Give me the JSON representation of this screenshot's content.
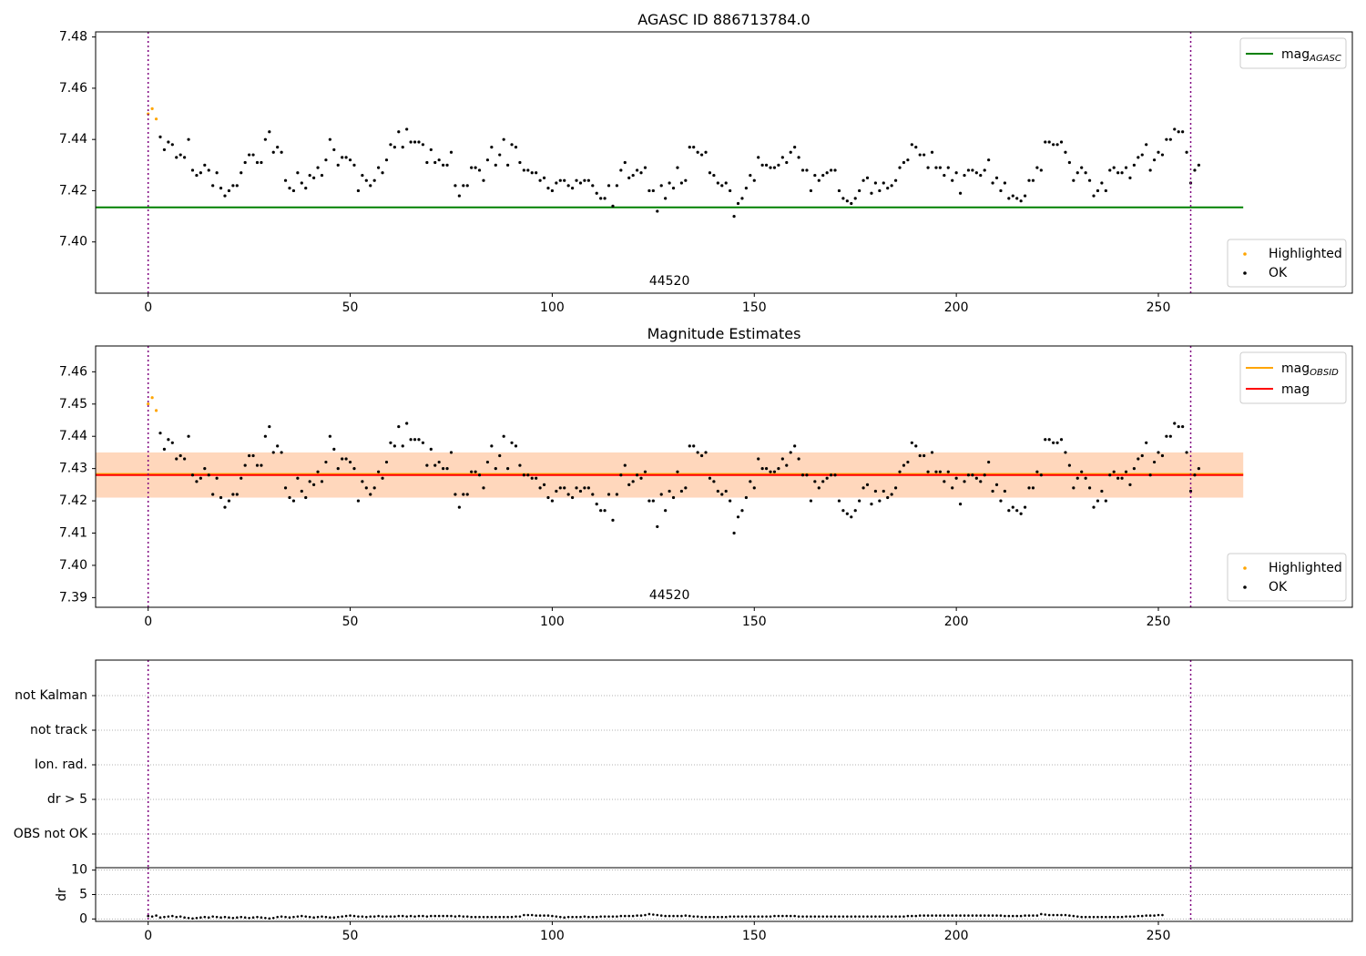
{
  "chart_data": [
    {
      "type": "scatter",
      "title": "AGASC ID 886713784.0",
      "xlabel": "",
      "ylabel": "",
      "annotation": "44520",
      "xlim": [
        -13,
        298
      ],
      "ylim": [
        7.38,
        7.482
      ],
      "x_ticks": [
        0,
        50,
        100,
        150,
        200,
        250
      ],
      "y_ticks": [
        7.4,
        7.42,
        7.44,
        7.46,
        7.48
      ],
      "y_tick_decimals": 2,
      "vlines": [
        0,
        258
      ],
      "hlines": [
        {
          "name": "mag_AGASC",
          "y": 7.4135,
          "x0": -13,
          "x1": 271,
          "color": "#008000"
        }
      ],
      "band": null,
      "legend_lines": [
        {
          "name": "mag",
          "sub": "AGASC",
          "color": "#008000"
        }
      ],
      "legend_points": [
        {
          "name": "Highlighted",
          "color": "#ffa500"
        },
        {
          "name": "OK",
          "color": "#000000"
        }
      ],
      "legend_position": "top-right / bottom-right",
      "grid": false
    },
    {
      "type": "scatter",
      "title": "Magnitude Estimates",
      "xlabel": "",
      "ylabel": "",
      "annotation": "44520",
      "xlim": [
        -13,
        298
      ],
      "ylim": [
        7.387,
        7.468
      ],
      "x_ticks": [
        0,
        50,
        100,
        150,
        200,
        250
      ],
      "y_ticks": [
        7.39,
        7.4,
        7.41,
        7.42,
        7.43,
        7.44,
        7.45,
        7.46
      ],
      "y_tick_decimals": 2,
      "vlines": [
        0,
        258
      ],
      "hlines": [
        {
          "name": "mag_OBSID",
          "y": 7.4283,
          "x0": -13,
          "x1": 271,
          "color": "#ffa500"
        },
        {
          "name": "mag",
          "y": 7.428,
          "x0": -13,
          "x1": 271,
          "color": "#ff0000"
        }
      ],
      "band": {
        "y0": 7.421,
        "y1": 7.435,
        "x0": -13,
        "x1": 271,
        "color": "#ffb6c1"
      },
      "band_inner": {
        "y0": 7.421,
        "y1": 7.435,
        "x0": -13,
        "x1": 271,
        "color": "#ffa500"
      },
      "legend_lines": [
        {
          "name": "mag",
          "sub": "OBSID",
          "color": "#ffa500"
        },
        {
          "name": "mag",
          "sub": "",
          "color": "#ff0000"
        }
      ],
      "legend_points": [
        {
          "name": "Highlighted",
          "color": "#ffa500"
        },
        {
          "name": "OK",
          "color": "#000000"
        }
      ],
      "legend_position": "top-right / bottom-right",
      "grid": false
    },
    {
      "type": "scatter",
      "title": "",
      "xlabel": "",
      "ylabel": "",
      "categories": [
        "not Kalman",
        "not track",
        "Ion. rad.",
        "dr > 5",
        "OBS not OK"
      ],
      "xlim": [
        -13,
        298
      ],
      "vlines": [
        0,
        258
      ],
      "flagged_points": [],
      "grid": true
    },
    {
      "type": "scatter",
      "title": "",
      "xlabel": "",
      "ylabel": "dr",
      "xlim": [
        -13,
        298
      ],
      "ylim": [
        -0.5,
        10.5
      ],
      "x_ticks": [
        0,
        50,
        100,
        150,
        200,
        250
      ],
      "y_ticks": [
        0,
        5,
        10
      ],
      "vlines": [
        0,
        258
      ],
      "grid": true,
      "dr_values": [
        0.6,
        0.5,
        0.7,
        0.3,
        0.4,
        0.5,
        0.6,
        0.4,
        0.5,
        0.3,
        0.2,
        0.1,
        0.2,
        0.3,
        0.4,
        0.3,
        0.5,
        0.4,
        0.3,
        0.4,
        0.3,
        0.2,
        0.3,
        0.4,
        0.3,
        0.2,
        0.3,
        0.4,
        0.3,
        0.2,
        0.1,
        0.2,
        0.4,
        0.5,
        0.4,
        0.3,
        0.4,
        0.5,
        0.6,
        0.5,
        0.4,
        0.3,
        0.4,
        0.5,
        0.4,
        0.3,
        0.3,
        0.4,
        0.5,
        0.6,
        0.7,
        0.6,
        0.5,
        0.5,
        0.4,
        0.5,
        0.5,
        0.6,
        0.5,
        0.5,
        0.5,
        0.5,
        0.6,
        0.6,
        0.5,
        0.6,
        0.5,
        0.6,
        0.6,
        0.5,
        0.6,
        0.6,
        0.6,
        0.6,
        0.6,
        0.6,
        0.5,
        0.6,
        0.5,
        0.5,
        0.4,
        0.4,
        0.4,
        0.4,
        0.4,
        0.4,
        0.4,
        0.4,
        0.4,
        0.4,
        0.4,
        0.5,
        0.5,
        0.8,
        0.8,
        0.8,
        0.7,
        0.7,
        0.7,
        0.7,
        0.6,
        0.5,
        0.4,
        0.3,
        0.4,
        0.4,
        0.4,
        0.4,
        0.5,
        0.4,
        0.4,
        0.4,
        0.5,
        0.5,
        0.5,
        0.5,
        0.5,
        0.6,
        0.6,
        0.6,
        0.6,
        0.7,
        0.7,
        0.8,
        1.0,
        0.9,
        0.8,
        0.7,
        0.6,
        0.6,
        0.6,
        0.6,
        0.6,
        0.7,
        0.6,
        0.5,
        0.5,
        0.4,
        0.4,
        0.4,
        0.4,
        0.4,
        0.4,
        0.4,
        0.5,
        0.5,
        0.5,
        0.5,
        0.5,
        0.5,
        0.5,
        0.5,
        0.5,
        0.5,
        0.5,
        0.6,
        0.6,
        0.6,
        0.6,
        0.6,
        0.6,
        0.5,
        0.5,
        0.5,
        0.5,
        0.5,
        0.5,
        0.5,
        0.5,
        0.5,
        0.5,
        0.5,
        0.5,
        0.5,
        0.5,
        0.5,
        0.5,
        0.5,
        0.5,
        0.5,
        0.5,
        0.5,
        0.5,
        0.5,
        0.5,
        0.5,
        0.5,
        0.5,
        0.6,
        0.6,
        0.6,
        0.7,
        0.7,
        0.7,
        0.7,
        0.7,
        0.7,
        0.7,
        0.7,
        0.7,
        0.7,
        0.7,
        0.7,
        0.7,
        0.7,
        0.7,
        0.7,
        0.7,
        0.7,
        0.7,
        0.7,
        0.7,
        0.6,
        0.6,
        0.6,
        0.6,
        0.6,
        0.7,
        0.7,
        0.7,
        0.7,
        1.0,
        0.9,
        0.8,
        0.8,
        0.8,
        0.8,
        0.8,
        0.7,
        0.6,
        0.5,
        0.4,
        0.4,
        0.4,
        0.4,
        0.4,
        0.4,
        0.4,
        0.4,
        0.4,
        0.4,
        0.4,
        0.5,
        0.5,
        0.5,
        0.6,
        0.6,
        0.7,
        0.7,
        0.7,
        0.8,
        0.8
      ]
    }
  ],
  "series": {
    "highlighted": {
      "x": [
        0,
        1,
        2
      ],
      "y": [
        7.45,
        7.452,
        7.448
      ]
    },
    "ok": {
      "x0": 3,
      "y": [
        7.441,
        7.436,
        7.439,
        7.438,
        7.433,
        7.434,
        7.433,
        7.44,
        7.428,
        7.426,
        7.427,
        7.43,
        7.428,
        7.422,
        7.427,
        7.421,
        7.418,
        7.42,
        7.422,
        7.422,
        7.427,
        7.431,
        7.434,
        7.434,
        7.431,
        7.431,
        7.44,
        7.443,
        7.435,
        7.437,
        7.435,
        7.424,
        7.421,
        7.42,
        7.427,
        7.423,
        7.421,
        7.426,
        7.425,
        7.429,
        7.426,
        7.432,
        7.44,
        7.436,
        7.43,
        7.433,
        7.433,
        7.432,
        7.43,
        7.42,
        7.426,
        7.424,
        7.422,
        7.424,
        7.429,
        7.427,
        7.432,
        7.438,
        7.437,
        7.443,
        7.437,
        7.444,
        7.439,
        7.439,
        7.439,
        7.438,
        7.431,
        7.436,
        7.431,
        7.432,
        7.43,
        7.43,
        7.435,
        7.422,
        7.418,
        7.422,
        7.422,
        7.429,
        7.429,
        7.428,
        7.424,
        7.432,
        7.437,
        7.43,
        7.434,
        7.44,
        7.43,
        7.438,
        7.437,
        7.431,
        7.428,
        7.428,
        7.427,
        7.427,
        7.424,
        7.425,
        7.421,
        7.42,
        7.423,
        7.424,
        7.424,
        7.422,
        7.421,
        7.424,
        7.423,
        7.424,
        7.424,
        7.422,
        7.419,
        7.417,
        7.417,
        7.422,
        7.414,
        7.422,
        7.428,
        7.431,
        7.425,
        7.426,
        7.428,
        7.427,
        7.429,
        7.42,
        7.42,
        7.412,
        7.422,
        7.417,
        7.423,
        7.421,
        7.429,
        7.423,
        7.424,
        7.437,
        7.437,
        7.435,
        7.434,
        7.435,
        7.427,
        7.426,
        7.423,
        7.422,
        7.423,
        7.42,
        7.41,
        7.415,
        7.417,
        7.421,
        7.426,
        7.424,
        7.433,
        7.43,
        7.43,
        7.429,
        7.429,
        7.43,
        7.433,
        7.431,
        7.435,
        7.437,
        7.433,
        7.428,
        7.428,
        7.42,
        7.426,
        7.424,
        7.426,
        7.427,
        7.428,
        7.428,
        7.42,
        7.417,
        7.416,
        7.415,
        7.417,
        7.42,
        7.424,
        7.425,
        7.419,
        7.423,
        7.42,
        7.423,
        7.421,
        7.422,
        7.424,
        7.429,
        7.431,
        7.432,
        7.438,
        7.437,
        7.434,
        7.434,
        7.429,
        7.435,
        7.429,
        7.429,
        7.426,
        7.429,
        7.424,
        7.427,
        7.419,
        7.426,
        7.428,
        7.428,
        7.427,
        7.426,
        7.428,
        7.432,
        7.423,
        7.425,
        7.42,
        7.423,
        7.417,
        7.418,
        7.417,
        7.416,
        7.418,
        7.424,
        7.424,
        7.429,
        7.428,
        7.439,
        7.439,
        7.438,
        7.438,
        7.439,
        7.435,
        7.431,
        7.424,
        7.427,
        7.429,
        7.427,
        7.424,
        7.418,
        7.42,
        7.423,
        7.42,
        7.428,
        7.429,
        7.427,
        7.427,
        7.429,
        7.425,
        7.43,
        7.433,
        7.434,
        7.438,
        7.428,
        7.432,
        7.435,
        7.434,
        7.44,
        7.44,
        7.444,
        7.443,
        7.443,
        7.435,
        7.423,
        7.428,
        7.43
      ]
    }
  }
}
